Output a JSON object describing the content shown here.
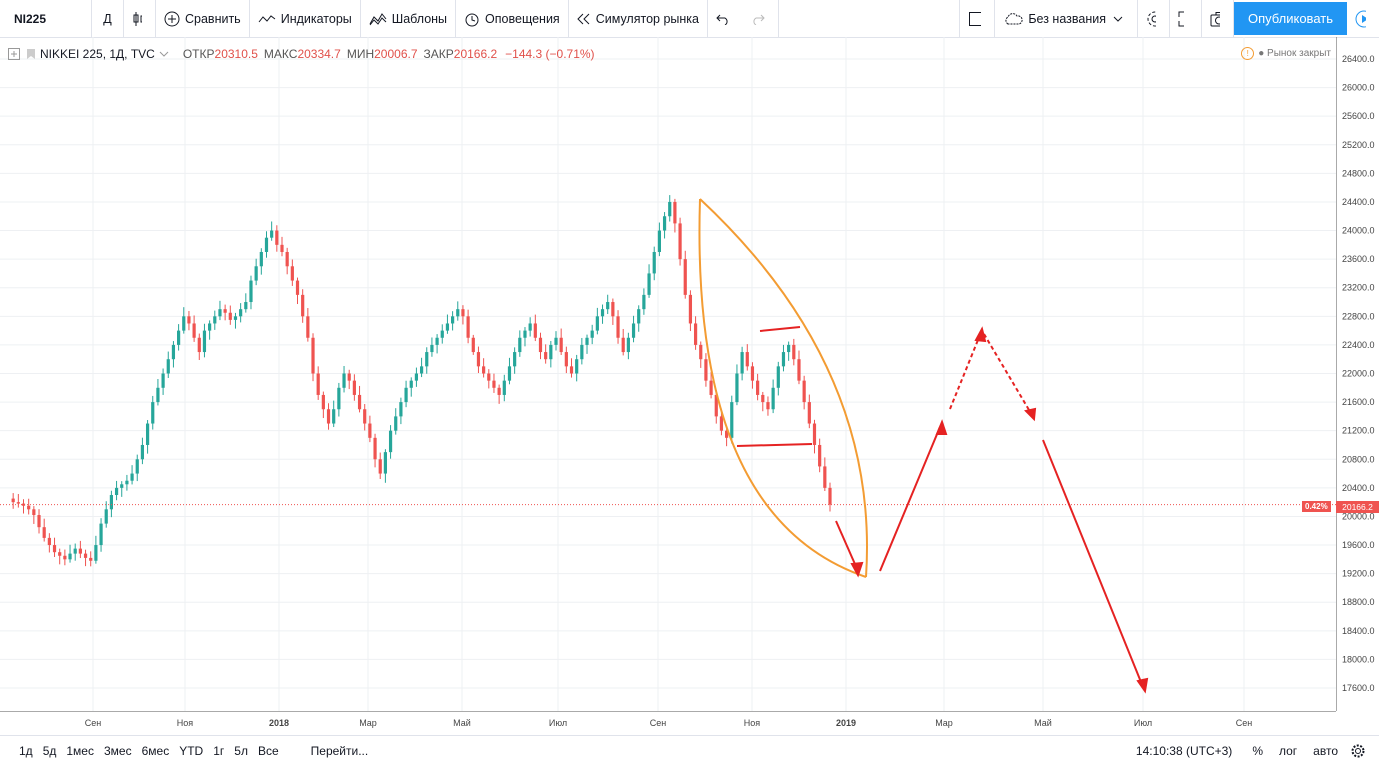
{
  "toolbar": {
    "symbol": "NI225",
    "interval": "Д",
    "compare": "Сравнить",
    "indicators": "Индикаторы",
    "templates": "Шаблоны",
    "alerts": "Оповещения",
    "replay": "Симулятор рынка",
    "layout_name": "Без названия",
    "publish": "Опубликовать"
  },
  "legend": {
    "title": "NIKKEI 225, 1Д, TVC",
    "open_label": "ОТКР",
    "open": "20310.5",
    "high_label": "МАКС",
    "high": "20334.7",
    "low_label": "МИН",
    "low": "20006.7",
    "close_label": "ЗАКР",
    "close": "20166.2",
    "change": "−144.3 (−0.71%)",
    "market_status": "Рынок закрыт"
  },
  "price_axis": {
    "ticks": [
      "26400.0",
      "26000.0",
      "25600.0",
      "25200.0",
      "24800.0",
      "24400.0",
      "24000.0",
      "23600.0",
      "23200.0",
      "22800.0",
      "22400.0",
      "22000.0",
      "21600.0",
      "21200.0",
      "20800.0",
      "20400.0",
      "20000.0",
      "19600.0",
      "19200.0",
      "18800.0",
      "18400.0",
      "18000.0",
      "17600.0"
    ],
    "current_pct": "0.42%",
    "current_price": "20166.2"
  },
  "time_axis": {
    "labels": [
      "Сен",
      "Ноя",
      "2018",
      "Мар",
      "Май",
      "Июл",
      "Сен",
      "Ноя",
      "2019",
      "Мар",
      "Май",
      "Июл",
      "Сен"
    ]
  },
  "bottom": {
    "ranges": [
      "1д",
      "5д",
      "1мес",
      "3мес",
      "6мес",
      "YTD",
      "1г",
      "5л",
      "Все"
    ],
    "goto": "Перейти...",
    "clock": "14:10:38 (UTC+3)",
    "pct": "%",
    "log": "лог",
    "auto": "авто"
  },
  "colors": {
    "up": "#26a69a",
    "down": "#ef5350",
    "accent": "#2196f3",
    "drawing_orange": "#f39c33",
    "drawing_red": "#e52222"
  },
  "chart_data": {
    "type": "candlestick",
    "title": "NIKKEI 225, 1Д, TVC",
    "ylim": [
      17400,
      26600
    ],
    "x_tick_labels": [
      "Сен",
      "Ноя",
      "2018",
      "Мар",
      "Май",
      "Июл",
      "Сен",
      "Ноя",
      "2019",
      "Мар",
      "Май",
      "Июл",
      "Сен"
    ],
    "series": [
      {
        "values": [
          20250,
          20200,
          20180,
          20150,
          20100,
          20020,
          19850,
          19700,
          19600,
          19500,
          19450,
          19400,
          19480,
          19550,
          19480,
          19420,
          19380,
          19600,
          19900,
          20100,
          20300,
          20400,
          20450,
          20500,
          20600,
          20800,
          21000,
          21300,
          21600,
          21800,
          22000,
          22200,
          22400,
          22600,
          22800,
          22700,
          22500,
          22300,
          22600,
          22700,
          22800,
          22900,
          22850,
          22750,
          22800,
          22900,
          23000,
          23300,
          23500,
          23700,
          23900,
          24000,
          23800,
          23700,
          23500,
          23300,
          23100,
          22800,
          22500,
          22000,
          21700,
          21500,
          21300,
          21500,
          21800,
          22000,
          21900,
          21700,
          21500,
          21300,
          21100,
          20800,
          20600,
          20900,
          21200,
          21400,
          21600,
          21800,
          21900,
          22000,
          22100,
          22300,
          22400,
          22500,
          22600,
          22700,
          22800,
          22900,
          22800,
          22500,
          22300,
          22100,
          22000,
          21900,
          21800,
          21700,
          21900,
          22100,
          22300,
          22500,
          22600,
          22700,
          22500,
          22300,
          22200,
          22400,
          22500,
          22300,
          22100,
          22000,
          22200,
          22400,
          22500,
          22600,
          22800,
          22900,
          23000,
          22800,
          22500,
          22300,
          22500,
          22700,
          22900,
          23100,
          23400,
          23700,
          24000,
          24200,
          24400,
          24100,
          23600,
          23100,
          22700,
          22400,
          22200,
          21900,
          21700,
          21400,
          21200,
          21100,
          21600,
          22000,
          22300,
          22100,
          21900,
          21700,
          21600,
          21500,
          21800,
          22100,
          22300,
          22400,
          22200,
          21900,
          21600,
          21300,
          21000,
          20700,
          20400,
          20166
        ]
      }
    ],
    "current_price": 20166.2
  }
}
